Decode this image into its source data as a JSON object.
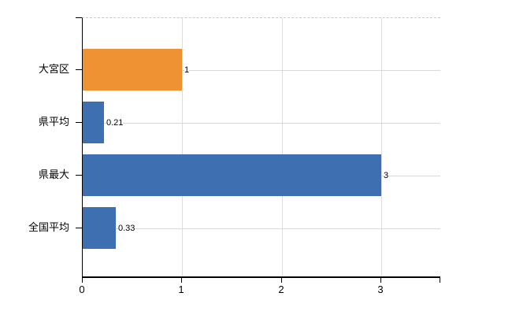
{
  "chart_data": {
    "type": "bar",
    "orientation": "horizontal",
    "title": "",
    "xlabel": "",
    "ylabel": "",
    "categories": [
      "大宮区",
      "県平均",
      "県最大",
      "全国平均"
    ],
    "values": [
      1,
      0.21,
      3,
      0.33
    ],
    "value_labels": [
      "1",
      "0.21",
      "3",
      "0.33"
    ],
    "bar_colors": [
      "#ee9233",
      "#3e6fb0",
      "#3e6fb0",
      "#3e6fb0"
    ],
    "x_ticks": [
      0,
      1,
      2,
      3
    ],
    "x_tick_labels": [
      "0",
      "1",
      "2",
      "3"
    ],
    "xlim": [
      0,
      3.6
    ],
    "grid": true,
    "legend": "none"
  },
  "colors": {
    "bar_orange": "#ee9233",
    "bar_blue": "#3e6fb0",
    "horizontal_gridline": "#d6dad6",
    "vertical_gridline": "#dedede",
    "plot_border_dashed": "#c9c9c9",
    "axis": "#000000",
    "background": "#ffffff"
  }
}
